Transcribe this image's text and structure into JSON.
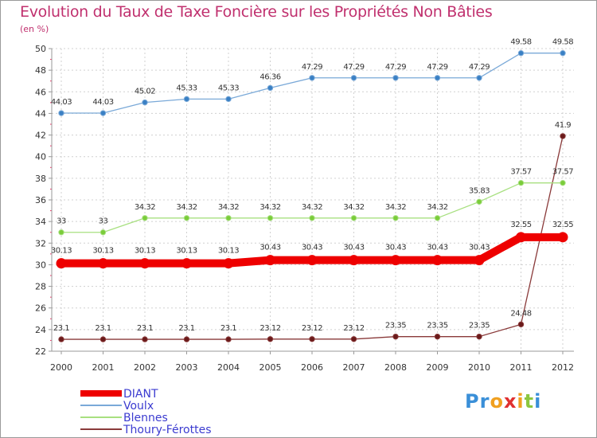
{
  "title": "Evolution du Taux de Taxe Foncière sur les Propriétés Non Bâties",
  "subtitle": "(en %)",
  "brand": {
    "letters": [
      "P",
      "r",
      "o",
      "x",
      "i",
      "t",
      "i"
    ],
    "colors": [
      "#3a8fd8",
      "#3a8fd8",
      "#f0a020",
      "#e03030",
      "#f0a020",
      "#8cc63f",
      "#3a8fd8"
    ]
  },
  "chart_data": {
    "type": "line",
    "title": "Evolution du Taux de Taxe Foncière sur les Propriétés Non Bâties",
    "ylabel": "(en %)",
    "xlabel": "",
    "x": [
      "2000",
      "2001",
      "2002",
      "2003",
      "2004",
      "2005",
      "2006",
      "2007",
      "2008",
      "2009",
      "2010",
      "2011",
      "2012"
    ],
    "ylim": [
      22,
      50
    ],
    "yticks": [
      22,
      24,
      26,
      28,
      30,
      32,
      34,
      36,
      38,
      40,
      42,
      44,
      46,
      48,
      50
    ],
    "grid": true,
    "legend": "bottom-left",
    "series": [
      {
        "name": "DIANT",
        "color": "#ee0000",
        "weight": "bold",
        "values": [
          30.13,
          30.13,
          30.13,
          30.13,
          30.13,
          30.43,
          30.43,
          30.43,
          30.43,
          30.43,
          30.43,
          32.55,
          32.55
        ],
        "labels": [
          "30.13",
          "30.13",
          "30.13",
          "30.13",
          "30.13",
          "30.43",
          "30.43",
          "30.43",
          "30.43",
          "30.43",
          "30.43",
          "32.55",
          "32.55"
        ]
      },
      {
        "name": "Voulx",
        "color": "#7aa9d8",
        "marker": "#3a80c4",
        "values": [
          44.03,
          44.03,
          45.02,
          45.33,
          45.33,
          46.36,
          47.29,
          47.29,
          47.29,
          47.29,
          47.29,
          49.58,
          49.58
        ],
        "labels": [
          "44.03",
          "44.03",
          "45.02",
          "45.33",
          "45.33",
          "46.36",
          "47.29",
          "47.29",
          "47.29",
          "47.29",
          "47.29",
          "49.58",
          "49.58"
        ]
      },
      {
        "name": "Blennes",
        "color": "#a8e080",
        "marker": "#7acc3a",
        "values": [
          33,
          33,
          34.32,
          34.32,
          34.32,
          34.32,
          34.32,
          34.32,
          34.32,
          34.32,
          35.83,
          37.57,
          37.57
        ],
        "labels": [
          "33",
          "33",
          "34.32",
          "34.32",
          "34.32",
          "34.32",
          "34.32",
          "34.32",
          "34.32",
          "34.32",
          "35.83",
          "37.57",
          "37.57"
        ]
      },
      {
        "name": "Thoury-Férottes",
        "color": "#8a3a3a",
        "marker": "#6a1a1a",
        "values": [
          23.1,
          23.1,
          23.1,
          23.1,
          23.1,
          23.12,
          23.12,
          23.12,
          23.35,
          23.35,
          23.35,
          24.48,
          41.9
        ],
        "labels": [
          "23.1",
          "23.1",
          "23.1",
          "23.1",
          "23.1",
          "23.12",
          "23.12",
          "23.12",
          "23.35",
          "23.35",
          "23.35",
          "24.48",
          "41.9"
        ]
      }
    ]
  }
}
